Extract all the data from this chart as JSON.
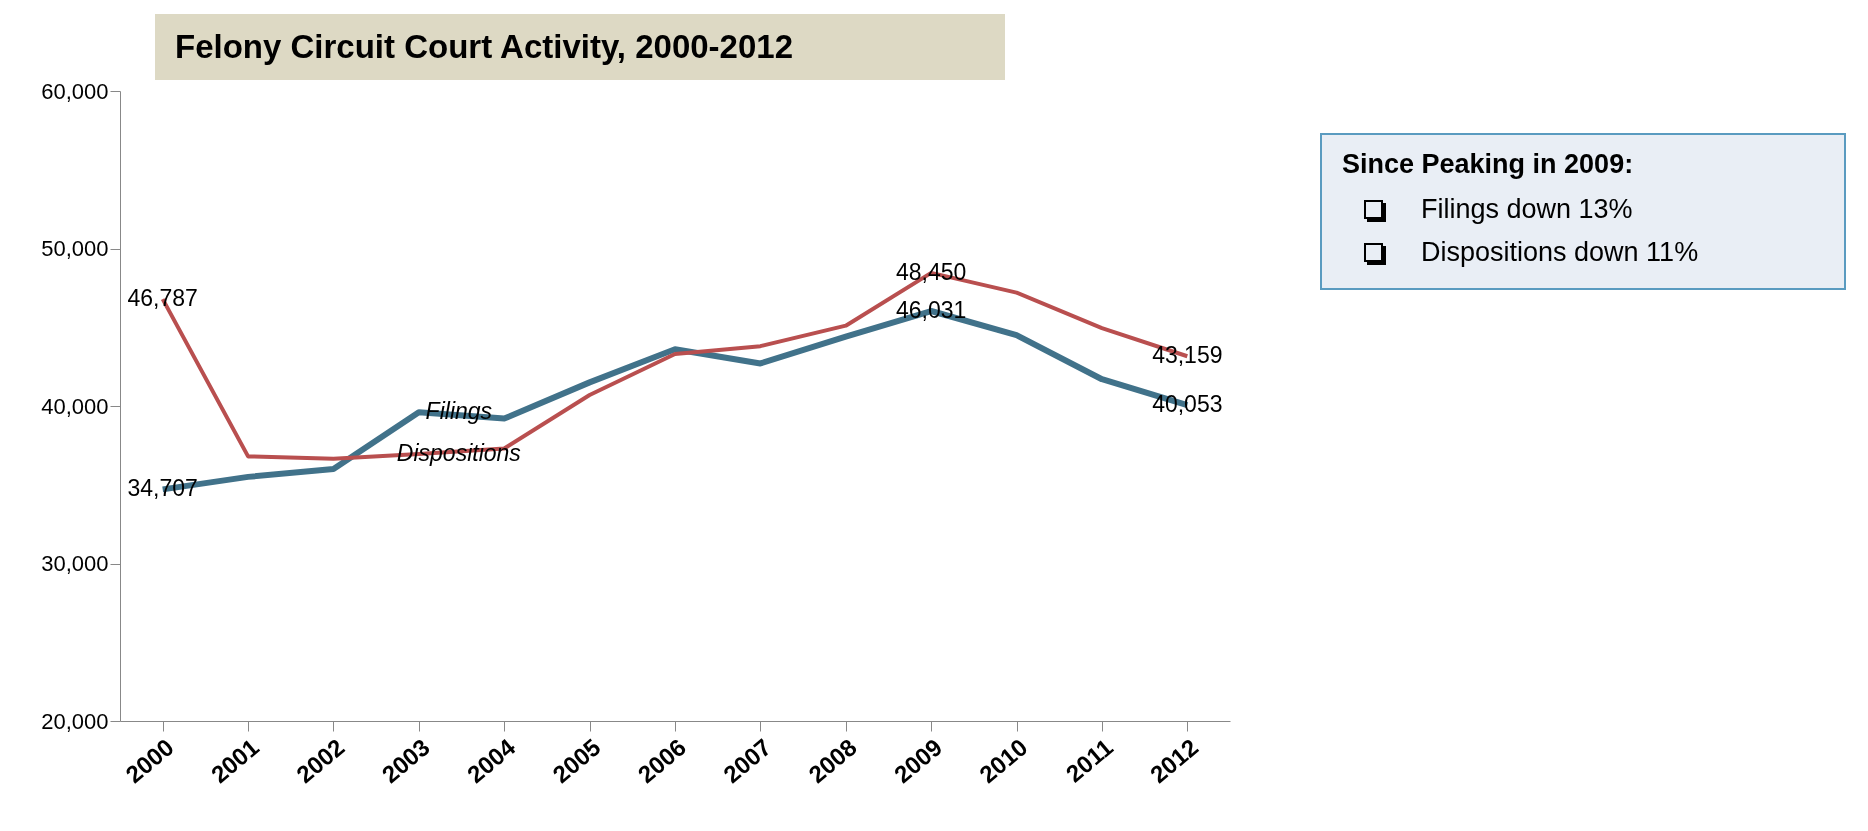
{
  "chart_data": {
    "type": "line",
    "title": "Felony Circuit Court Activity, 2000-2012",
    "categories": [
      "2000",
      "2001",
      "2002",
      "2003",
      "2004",
      "2005",
      "2006",
      "2007",
      "2008",
      "2009",
      "2010",
      "2011",
      "2012"
    ],
    "series": [
      {
        "name": "Filings",
        "color": "#41728a",
        "values": [
          34707,
          35500,
          36000,
          39600,
          39200,
          41500,
          43600,
          42700,
          44400,
          46031,
          44500,
          41700,
          40053
        ],
        "value_labels": [
          "34,707",
          null,
          null,
          null,
          null,
          null,
          null,
          null,
          null,
          "46,031",
          null,
          null,
          "40,053"
        ]
      },
      {
        "name": "Dispositions",
        "color": "#b94f4f",
        "values": [
          46787,
          36800,
          36650,
          36950,
          37300,
          40700,
          43300,
          43800,
          45100,
          48450,
          47200,
          44950,
          43159
        ],
        "value_labels": [
          "46,787",
          null,
          null,
          null,
          null,
          null,
          null,
          null,
          null,
          "48,450",
          null,
          null,
          "43,159"
        ]
      }
    ],
    "ylim": [
      20000,
      60000
    ],
    "yticks": [
      {
        "value": 20000,
        "label": "20,000"
      },
      {
        "value": 30000,
        "label": "30,000"
      },
      {
        "value": 40000,
        "label": "40,000"
      },
      {
        "value": 50000,
        "label": "50,000"
      },
      {
        "value": 60000,
        "label": "60,000"
      }
    ],
    "grid": false,
    "legend": false,
    "marker": "none",
    "line_style": "solid",
    "annotations": [
      "Since Peaking in 2009:",
      "Filings down 13%",
      "Dispositions down 11%"
    ]
  }
}
